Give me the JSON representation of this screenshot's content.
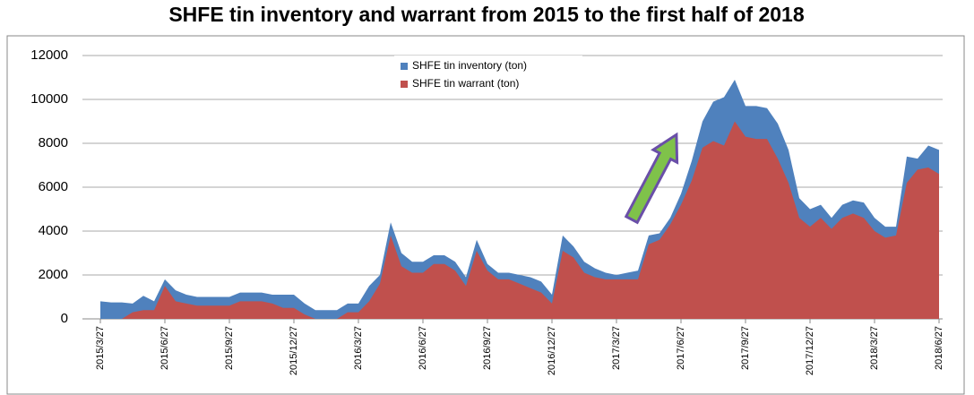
{
  "chart_data": {
    "type": "area",
    "title": "SHFE tin inventory and warrant from 2015 to the first half of 2018",
    "categories": [
      "2015/3/27",
      null,
      null,
      null,
      null,
      null,
      "2015/6/27",
      null,
      null,
      null,
      null,
      null,
      "2015/9/27",
      null,
      null,
      null,
      null,
      null,
      "2015/12/27",
      null,
      null,
      null,
      null,
      null,
      "2016/3/27",
      null,
      null,
      null,
      null,
      null,
      "2016/6/27",
      null,
      null,
      null,
      null,
      null,
      "2016/9/27",
      null,
      null,
      null,
      null,
      null,
      "2016/12/27",
      null,
      null,
      null,
      null,
      null,
      "2017/3/27",
      null,
      null,
      null,
      null,
      null,
      "2017/6/27",
      null,
      null,
      null,
      null,
      null,
      "2017/9/27",
      null,
      null,
      null,
      null,
      null,
      "2017/12/27",
      null,
      null,
      null,
      null,
      null,
      "2018/3/27",
      null,
      null,
      null,
      null,
      null,
      "2018/6/27"
    ],
    "series": [
      {
        "name": "SHFE tin inventory (ton)",
        "color": "#4f81bd",
        "values": [
          800,
          750,
          750,
          700,
          1050,
          800,
          1800,
          1300,
          1100,
          1000,
          1000,
          1000,
          1000,
          1200,
          1200,
          1200,
          1100,
          1100,
          1100,
          700,
          400,
          400,
          400,
          700,
          700,
          1500,
          2000,
          4400,
          3000,
          2600,
          2600,
          2900,
          2900,
          2600,
          1900,
          3600,
          2500,
          2100,
          2100,
          2000,
          1900,
          1700,
          1100,
          3800,
          3300,
          2600,
          2300,
          2100,
          2000,
          2100,
          2200,
          3800,
          3900,
          4600,
          5700,
          7200,
          9000,
          9900,
          10100,
          10900,
          9700,
          9700,
          9600,
          8900,
          7700,
          5500,
          5000,
          5200,
          4600,
          5200,
          5400,
          5300,
          4600,
          4200,
          4200,
          7400,
          7300,
          7900,
          7700
        ]
      },
      {
        "name": "SHFE tin warrant (ton)",
        "color": "#c0504d",
        "values": [
          0,
          0,
          0,
          300,
          400,
          400,
          1500,
          800,
          700,
          600,
          600,
          600,
          600,
          800,
          800,
          800,
          700,
          500,
          500,
          200,
          0,
          0,
          0,
          300,
          300,
          800,
          1600,
          3800,
          2400,
          2100,
          2100,
          2500,
          2500,
          2200,
          1500,
          3100,
          2200,
          1800,
          1800,
          1600,
          1400,
          1200,
          700,
          3100,
          2800,
          2100,
          1900,
          1800,
          1800,
          1800,
          1800,
          3400,
          3600,
          4300,
          5200,
          6300,
          7800,
          8100,
          7900,
          9000,
          8300,
          8200,
          8200,
          7300,
          6200,
          4600,
          4200,
          4600,
          4100,
          4600,
          4800,
          4600,
          4000,
          3700,
          3800,
          6200,
          6800,
          6900,
          6600
        ]
      }
    ],
    "ylim": [
      0,
      12000
    ],
    "yticks": [
      0,
      2000,
      4000,
      6000,
      8000,
      10000,
      12000
    ],
    "grid": true
  }
}
